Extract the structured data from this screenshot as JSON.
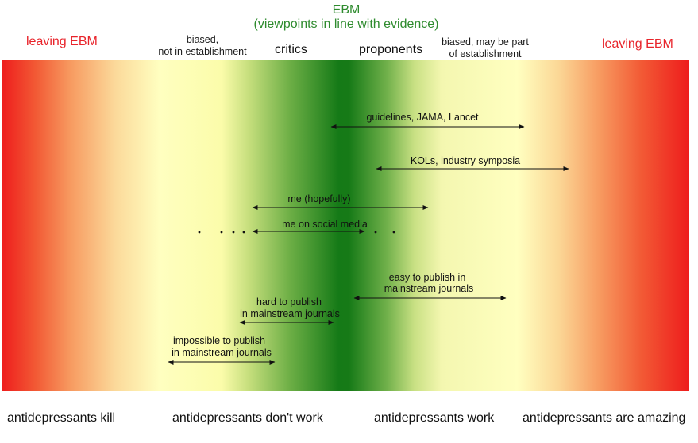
{
  "header": {
    "ebm_title": "EBM",
    "ebm_subtitle": "(viewpoints in line with evidence)",
    "leaving_left": "leaving EBM",
    "leaving_right": "leaving EBM",
    "biased_left_line1": "biased,",
    "biased_left_line2": "not in establishment",
    "critics": "critics",
    "proponents": "proponents",
    "biased_right_line1": "biased, may be part",
    "biased_right_line2": "of establishment"
  },
  "ranges": [
    {
      "id": "guidelines",
      "lines": [
        "guidelines, JAMA, Lancet"
      ]
    },
    {
      "id": "kols",
      "lines": [
        "KOLs, industry symposia"
      ]
    },
    {
      "id": "me",
      "lines": [
        "me (hopefully)"
      ]
    },
    {
      "id": "social",
      "lines": [
        "me on social media"
      ]
    },
    {
      "id": "easy",
      "lines": [
        "easy to publish in",
        "mainstream journals"
      ]
    },
    {
      "id": "hard",
      "lines": [
        "hard to publish",
        "in mainstream journals"
      ]
    },
    {
      "id": "impossible",
      "lines": [
        "impossible to publish",
        "in mainstream journals"
      ]
    }
  ],
  "footer": {
    "kill": "antidepressants kill",
    "dont_work": "antidepressants don't work",
    "work": "antidepressants work",
    "amazing": "antidepressants are amazing"
  },
  "colors": {
    "red": "#ee1c1c",
    "yellow": "#ffffc0",
    "green": "#157a17",
    "header_red": "#e8242b",
    "header_green": "#2e8b2e"
  }
}
